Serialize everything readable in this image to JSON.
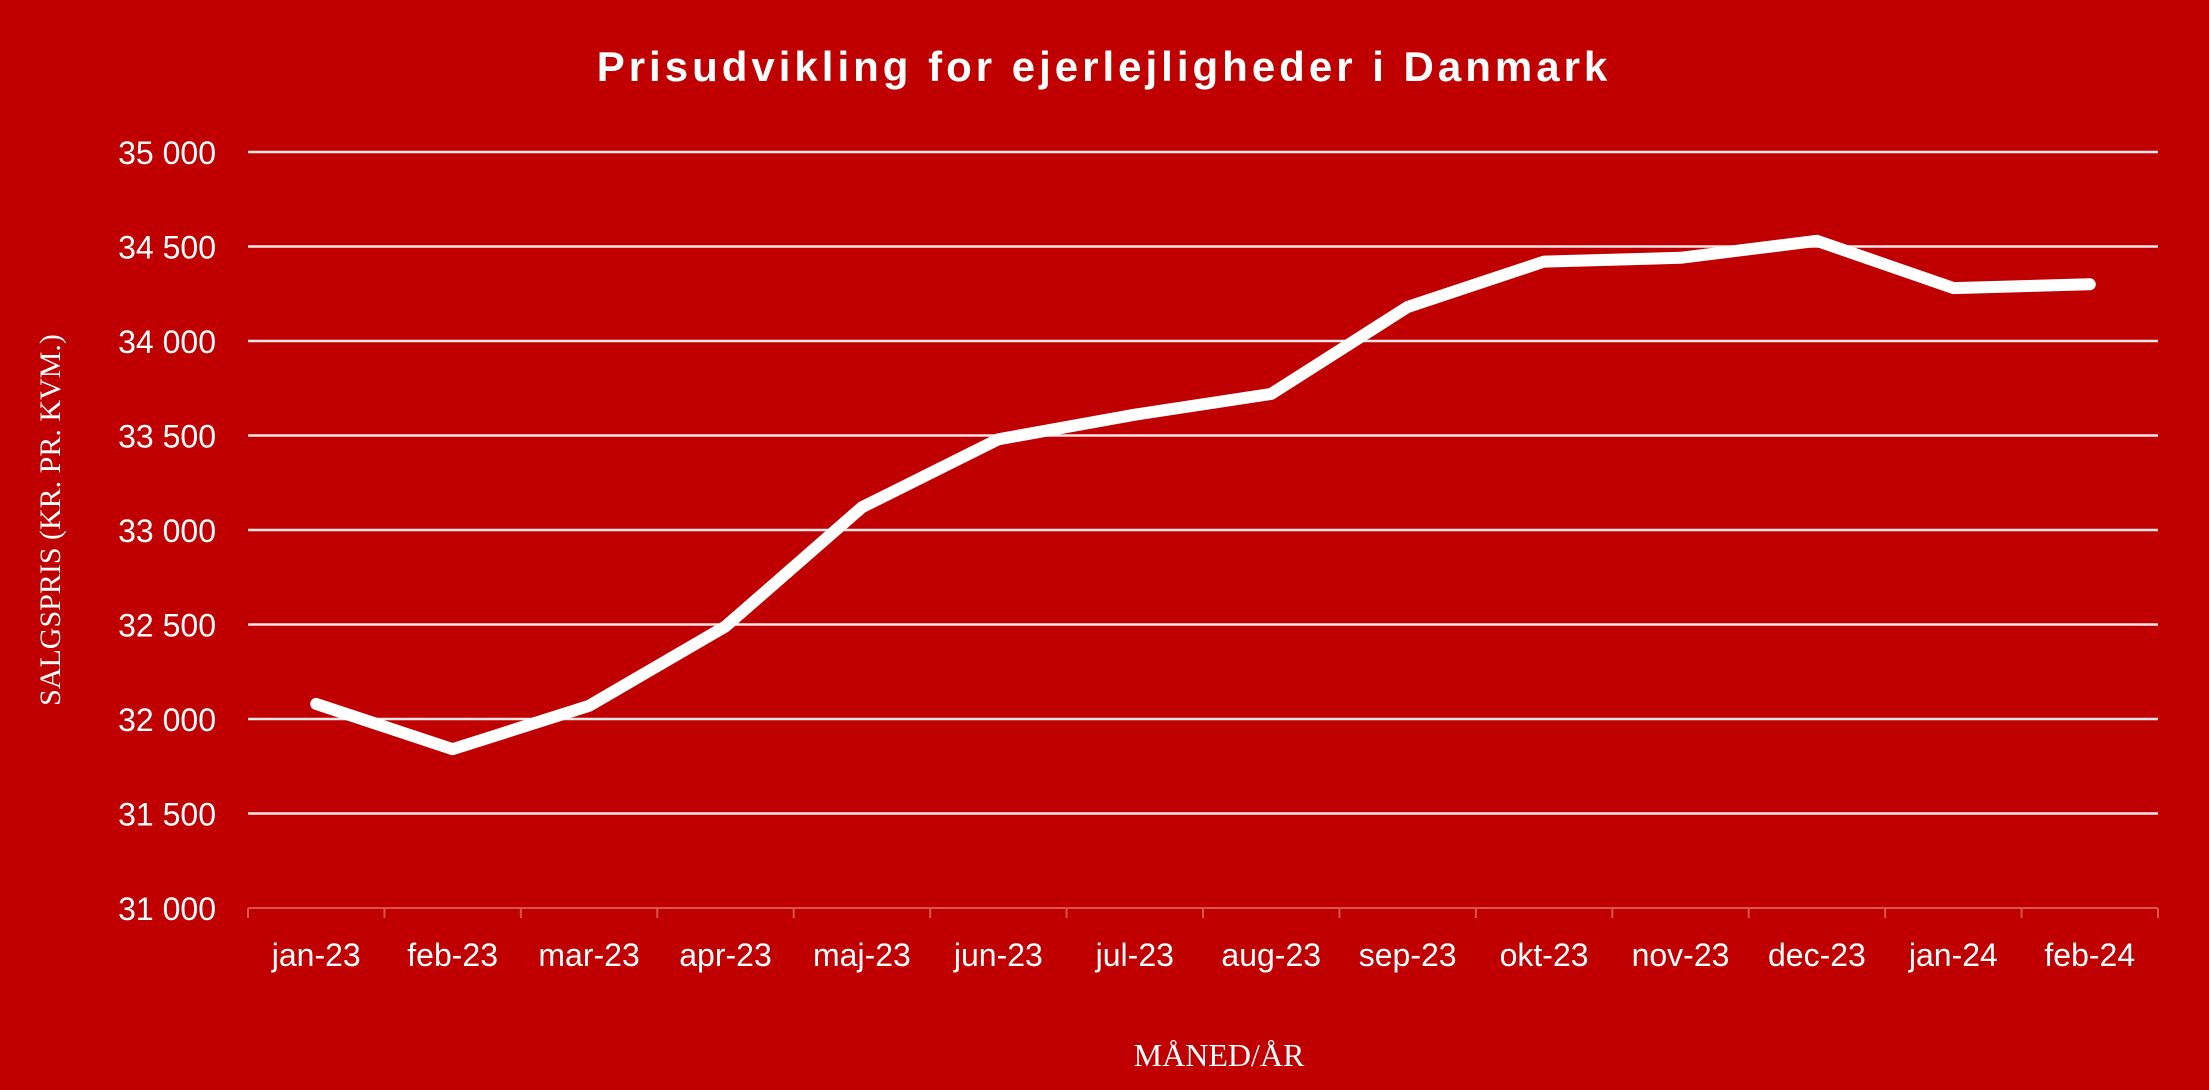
{
  "colors": {
    "background": "#C00000",
    "line": "#FFFFFF",
    "grid": "#FFFFFF",
    "text": "#FFFFFF"
  },
  "chart_data": {
    "type": "line",
    "title": "Prisudvikling for ejerlejligheder i Danmark",
    "xlabel": "MÅNED/ÅR",
    "ylabel": "SALGSPRIS (KR. PR. KVM.)",
    "categories": [
      "jan-23",
      "feb-23",
      "mar-23",
      "apr-23",
      "maj-23",
      "jun-23",
      "jul-23",
      "aug-23",
      "sep-23",
      "okt-23",
      "nov-23",
      "dec-23",
      "jan-24",
      "feb-24"
    ],
    "series": [
      {
        "values": [
          32080,
          31840,
          32070,
          32490,
          33120,
          33480,
          33610,
          33720,
          34180,
          34420,
          34440,
          34530,
          34280,
          34300
        ]
      }
    ],
    "ylim": [
      31000,
      35000
    ],
    "yticks": [
      31000,
      31500,
      32000,
      32500,
      33000,
      33500,
      34000,
      34500,
      35000
    ],
    "ytick_labels": [
      "31 000",
      "31 500",
      "32 000",
      "32 500",
      "33 000",
      "33 500",
      "34 000",
      "34 500",
      "35 000"
    ],
    "grid": true,
    "legend": "none"
  }
}
